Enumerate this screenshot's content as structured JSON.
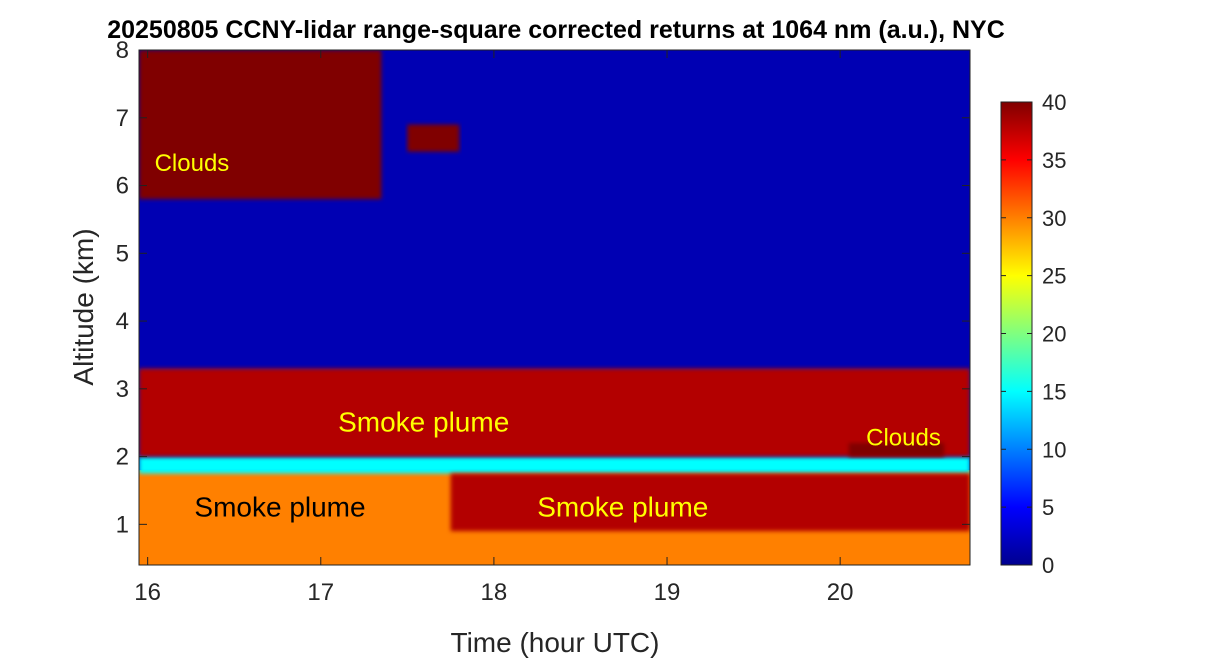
{
  "chart_data": {
    "type": "heatmap",
    "title": "20250805 CCNY-lidar range-square corrected returns at 1064 nm (a.u.), NYC",
    "xlabel": "Time (hour UTC)",
    "ylabel": "Altitude (km)",
    "xlim": [
      15.95,
      20.75
    ],
    "ylim": [
      0.4,
      8.0
    ],
    "x_ticks": [
      16,
      17,
      18,
      19,
      20
    ],
    "y_ticks": [
      1,
      2,
      3,
      4,
      5,
      6,
      7,
      8
    ],
    "colorbar": {
      "range": [
        0,
        40
      ],
      "ticks": [
        0,
        5,
        10,
        15,
        20,
        25,
        30,
        35,
        40
      ],
      "colormap": "jet"
    },
    "annotations": [
      {
        "text": "Clouds",
        "x": 16.04,
        "y": 6.35,
        "color": "#ffff00"
      },
      {
        "text": "Smoke plume",
        "x": 17.1,
        "y": 2.5,
        "color": "#ffff00"
      },
      {
        "text": "Smoke plume",
        "x": 16.27,
        "y": 1.25,
        "color": "#000000"
      },
      {
        "text": "Smoke plume",
        "x": 18.25,
        "y": 1.25,
        "color": "#ffff00"
      },
      {
        "text": "Clouds",
        "x": 20.15,
        "y": 2.3,
        "color": "#ffff00"
      }
    ],
    "features": [
      {
        "kind": "cloud",
        "x_range": [
          15.95,
          17.35
        ],
        "y_range": [
          5.8,
          8.0
        ],
        "value": 40
      },
      {
        "kind": "cloud",
        "x_range": [
          17.5,
          17.8
        ],
        "y_range": [
          6.5,
          6.9
        ],
        "value": 40
      },
      {
        "kind": "cloud",
        "x_range": [
          20.05,
          20.6
        ],
        "y_range": [
          2.0,
          2.2
        ],
        "value": 40
      },
      {
        "kind": "smoke",
        "x_range": [
          15.95,
          20.75
        ],
        "y_range": [
          2.0,
          3.3
        ],
        "value": 38
      },
      {
        "kind": "smoke",
        "x_range": [
          17.75,
          20.75
        ],
        "y_range": [
          0.9,
          1.75
        ],
        "value": 38
      },
      {
        "kind": "boundary",
        "x_range": [
          15.95,
          20.75
        ],
        "y_range": [
          0.4,
          1.8
        ],
        "value": 30
      },
      {
        "kind": "transition",
        "x_range": [
          15.95,
          20.75
        ],
        "y_range": [
          1.75,
          2.0
        ],
        "value": 15
      },
      {
        "kind": "background",
        "x_range": [
          15.95,
          20.75
        ],
        "y_range": [
          3.3,
          8.0
        ],
        "value": 2
      }
    ]
  }
}
